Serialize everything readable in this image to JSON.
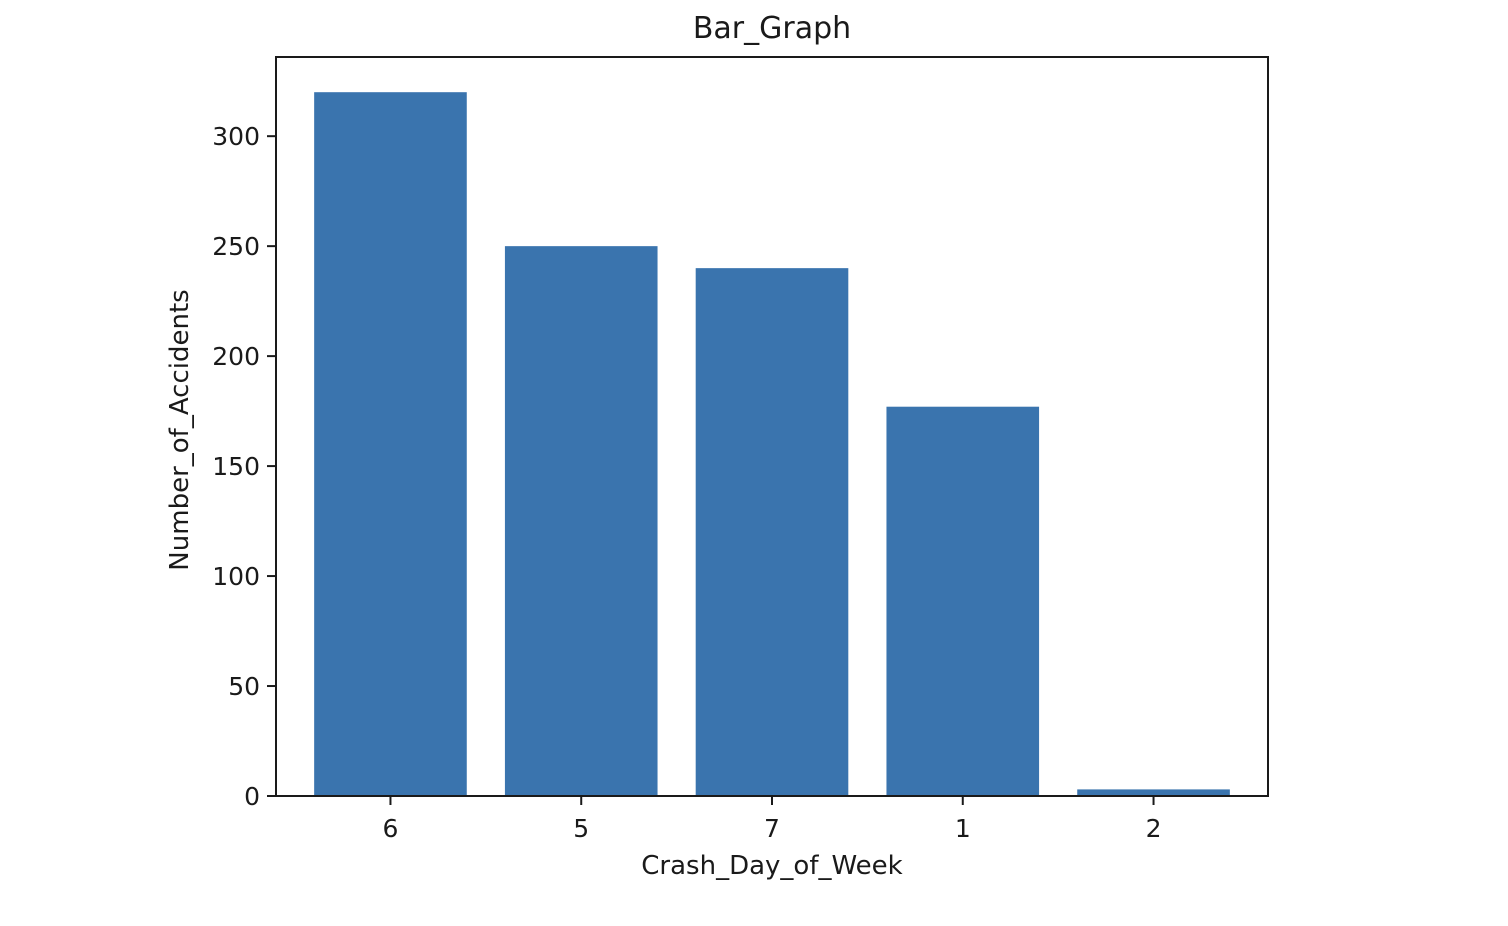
{
  "chart_data": {
    "type": "bar",
    "title": "Bar_Graph",
    "xlabel": "Crash_Day_of_Week",
    "ylabel": "Number_of_Accidents",
    "categories": [
      "6",
      "5",
      "7",
      "1",
      "2"
    ],
    "values": [
      320,
      250,
      240,
      177,
      3
    ],
    "ylim": [
      0,
      336
    ],
    "yticks": [
      0,
      50,
      100,
      150,
      200,
      250,
      300
    ],
    "grid": false,
    "bar_color": "#3a74ae"
  }
}
